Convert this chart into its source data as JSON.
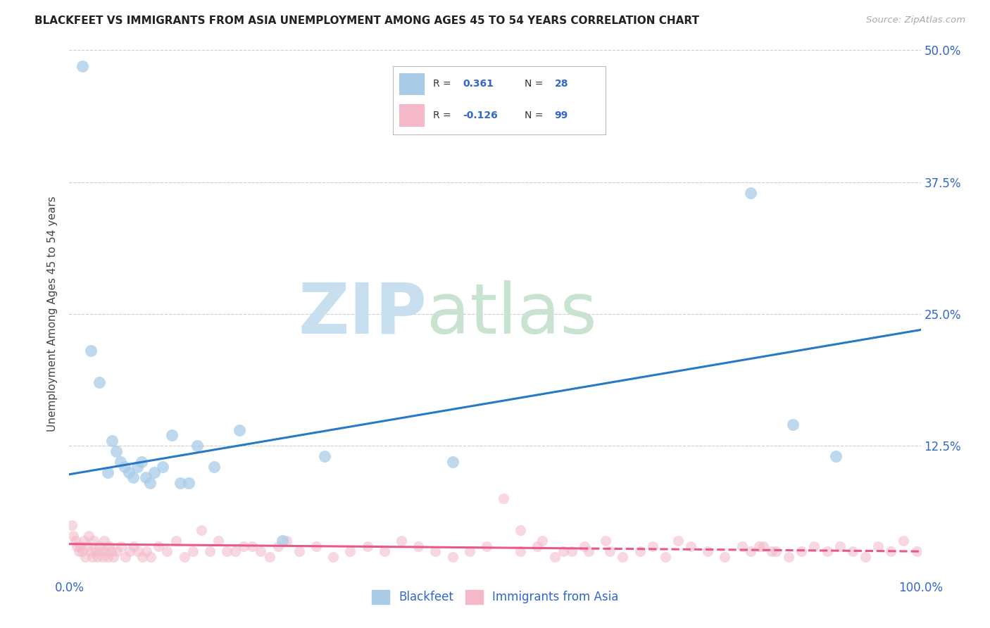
{
  "title": "BLACKFEET VS IMMIGRANTS FROM ASIA UNEMPLOYMENT AMONG AGES 45 TO 54 YEARS CORRELATION CHART",
  "source": "Source: ZipAtlas.com",
  "ylabel": "Unemployment Among Ages 45 to 54 years",
  "xlim": [
    0,
    100
  ],
  "ylim": [
    0,
    50
  ],
  "yticks": [
    0,
    12.5,
    25,
    37.5,
    50
  ],
  "yticklabels": [
    "",
    "12.5%",
    "25.0%",
    "37.5%",
    "50.0%"
  ],
  "legend_labels": [
    "Blackfeet",
    "Immigrants from Asia"
  ],
  "r_blackfeet": "0.361",
  "n_blackfeet": "28",
  "r_asia": "-0.126",
  "n_asia": "99",
  "blue_scatter_color": "#a8cce8",
  "pink_scatter_color": "#f4b8c8",
  "blue_line_color": "#2878c8",
  "pink_line_color": "#e85888",
  "blue_legend_color": "#a8cce8",
  "pink_legend_color": "#f4b8c8",
  "watermark_zip_color": "#c8dff0",
  "watermark_atlas_color": "#c8e4d0",
  "background_color": "#ffffff",
  "title_color": "#222222",
  "axis_label_color": "#444444",
  "tick_color": "#3366cc",
  "grid_color": "#cccccc",
  "blackfeet_x": [
    1.5,
    2.5,
    3.5,
    4.5,
    5.0,
    5.5,
    6.0,
    6.5,
    7.0,
    7.5,
    8.0,
    8.5,
    9.0,
    9.5,
    10.0,
    11.0,
    12.0,
    13.0,
    14.0,
    15.0,
    17.0,
    20.0,
    25.0,
    30.0,
    45.0,
    80.0,
    85.0,
    90.0
  ],
  "blackfeet_y": [
    48.5,
    21.5,
    18.5,
    10.0,
    13.0,
    12.0,
    11.0,
    10.5,
    10.0,
    9.5,
    10.5,
    11.0,
    9.5,
    9.0,
    10.0,
    10.5,
    13.5,
    9.0,
    9.0,
    12.5,
    10.5,
    14.0,
    3.5,
    11.5,
    11.0,
    36.5,
    14.5,
    11.5
  ],
  "asia_x": [
    0.3,
    0.5,
    0.7,
    0.9,
    1.1,
    1.3,
    1.5,
    1.7,
    1.9,
    2.1,
    2.3,
    2.5,
    2.7,
    2.9,
    3.1,
    3.3,
    3.5,
    3.7,
    3.9,
    4.1,
    4.3,
    4.5,
    4.7,
    4.9,
    5.2,
    5.6,
    6.1,
    6.6,
    7.1,
    7.6,
    8.1,
    8.6,
    9.1,
    9.6,
    10.5,
    11.5,
    12.5,
    13.5,
    14.5,
    15.5,
    16.5,
    17.5,
    18.5,
    19.5,
    20.5,
    21.5,
    22.5,
    23.5,
    24.5,
    25.5,
    27.0,
    29.0,
    31.0,
    33.0,
    35.0,
    37.0,
    39.0,
    41.0,
    43.0,
    45.0,
    47.0,
    49.0,
    51.0,
    53.0,
    55.0,
    57.0,
    59.0,
    61.0,
    63.0,
    65.0,
    67.0,
    68.5,
    70.0,
    71.5,
    73.0,
    75.0,
    77.0,
    79.0,
    80.0,
    81.5,
    83.0,
    84.5,
    86.0,
    87.5,
    89.0,
    90.5,
    92.0,
    93.5,
    95.0,
    96.5,
    98.0,
    99.5,
    53.0,
    55.5,
    58.0,
    60.5,
    63.5,
    81.0,
    82.5
  ],
  "asia_y": [
    5.0,
    4.0,
    3.5,
    3.0,
    2.5,
    3.0,
    2.5,
    3.5,
    2.0,
    3.0,
    4.0,
    2.5,
    2.0,
    3.5,
    2.5,
    2.0,
    3.0,
    2.5,
    2.0,
    3.5,
    2.5,
    2.0,
    3.0,
    2.5,
    2.0,
    2.5,
    3.0,
    2.0,
    2.5,
    3.0,
    2.5,
    2.0,
    2.5,
    2.0,
    3.0,
    2.5,
    3.5,
    2.0,
    2.5,
    4.5,
    2.5,
    3.5,
    2.5,
    2.5,
    3.0,
    3.0,
    2.5,
    2.0,
    3.0,
    3.5,
    2.5,
    3.0,
    2.0,
    2.5,
    3.0,
    2.5,
    3.5,
    3.0,
    2.5,
    2.0,
    2.5,
    3.0,
    7.5,
    2.5,
    3.0,
    2.0,
    2.5,
    2.5,
    3.5,
    2.0,
    2.5,
    3.0,
    2.0,
    3.5,
    3.0,
    2.5,
    2.0,
    3.0,
    2.5,
    3.0,
    2.5,
    2.0,
    2.5,
    3.0,
    2.5,
    3.0,
    2.5,
    2.0,
    3.0,
    2.5,
    3.5,
    2.5,
    4.5,
    3.5,
    2.5,
    3.0,
    2.5,
    3.0,
    2.5
  ],
  "blue_line_x0": 0,
  "blue_line_y0": 9.8,
  "blue_line_x1": 100,
  "blue_line_y1": 23.5,
  "pink_line_x0": 0,
  "pink_line_y0": 3.2,
  "pink_line_x1": 100,
  "pink_line_y1": 2.5,
  "pink_solid_end": 60,
  "pink_dash_start": 60
}
